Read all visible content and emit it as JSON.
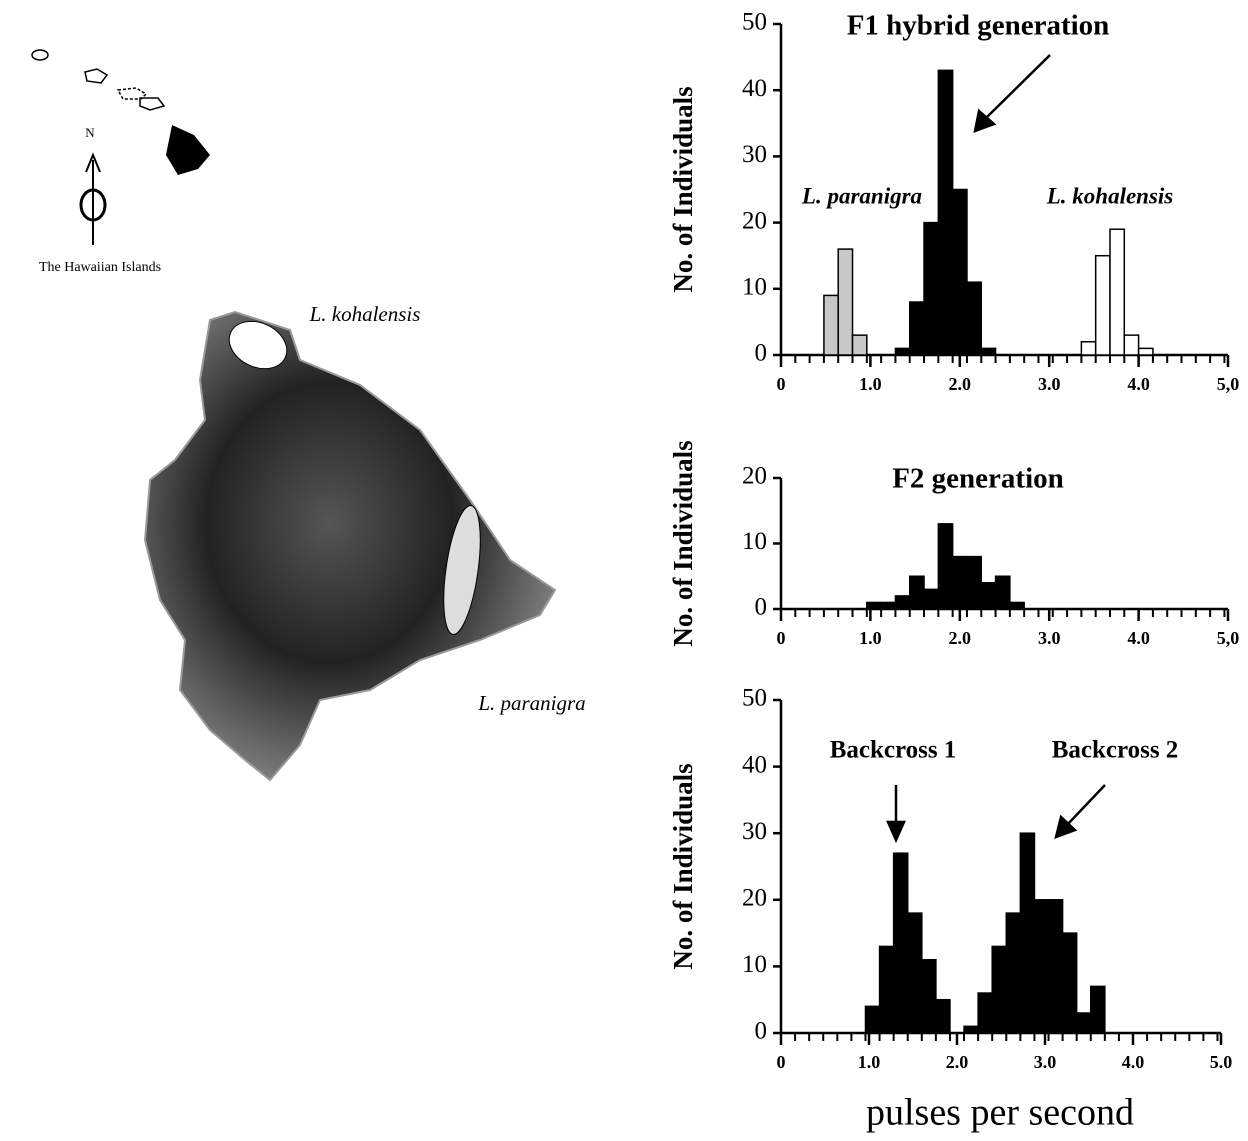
{
  "map": {
    "caption": "The Hawaiian Islands",
    "north": "N",
    "label_north": "L. kohalensis",
    "label_south": "L. paranigra"
  },
  "chart_data": [
    {
      "type": "histogram",
      "title": "F1 hybrid generation",
      "y_label": "No. of Individuals",
      "bins": [
        0,
        0.16,
        0.32,
        0.48,
        0.64,
        0.8,
        0.96,
        1.12,
        1.28,
        1.44,
        1.6,
        1.76,
        1.92,
        2.08,
        2.24,
        2.4,
        2.56,
        2.72,
        2.88,
        3.04,
        3.2,
        3.36,
        3.52,
        3.68,
        3.84,
        4,
        4.16,
        4.32,
        4.48,
        4.64,
        4.8,
        4.96
      ],
      "series": [
        {
          "name": "L. paranigra",
          "color": "#c8c8c8",
          "values": [
            0,
            0,
            0,
            9,
            16,
            3,
            0,
            0,
            0,
            0,
            0,
            0,
            0,
            0,
            0,
            0,
            0,
            0,
            0,
            0,
            0,
            0,
            0,
            0,
            0,
            0,
            0,
            0,
            0,
            0,
            0
          ]
        },
        {
          "color": "#000000",
          "values": [
            0,
            0,
            0,
            0,
            0,
            0,
            0,
            0,
            1,
            8,
            20,
            43,
            25,
            11,
            1,
            0,
            0,
            0,
            0,
            0,
            0,
            0,
            0,
            0,
            0,
            0,
            0,
            0,
            0,
            0,
            0
          ]
        },
        {
          "name": "L. kohalensis",
          "color": "#ffffff",
          "values": [
            0,
            0,
            0,
            0,
            0,
            0,
            0,
            0,
            0,
            0,
            0,
            0,
            0,
            0,
            0,
            0,
            0,
            0,
            0,
            0,
            0,
            2,
            15,
            19,
            3,
            1,
            0,
            0,
            0,
            0,
            0
          ]
        }
      ],
      "xlim": [
        0,
        5
      ],
      "ylim": [
        0,
        50
      ],
      "xticks": [
        0,
        {
          "value": 1,
          "label": "1.0"
        },
        {
          "value": 2,
          "label": "2.0"
        },
        {
          "value": 3,
          "label": "3.0"
        },
        {
          "value": 4,
          "label": "4.0"
        },
        {
          "value": 5,
          "label": "5,0"
        }
      ],
      "yticks": [
        0,
        10,
        20,
        30,
        40,
        50
      ]
    },
    {
      "type": "histogram",
      "title": "F2 generation",
      "y_label": "No. of Individuals",
      "bins": [
        0,
        0.16,
        0.32,
        0.48,
        0.64,
        0.8,
        0.96,
        1.12,
        1.28,
        1.44,
        1.6,
        1.76,
        1.92,
        2.08,
        2.24,
        2.4,
        2.56,
        2.72,
        2.88,
        3.04,
        3.2,
        3.36,
        3.52,
        3.68,
        3.84,
        4,
        4.16,
        4.32,
        4.48,
        4.64,
        4.8,
        4.96
      ],
      "color": "#000000",
      "values": [
        0,
        0,
        0,
        0,
        0,
        0,
        1,
        1,
        2,
        5,
        3,
        13,
        8,
        8,
        4,
        5,
        1,
        0,
        0,
        0,
        0,
        0,
        0,
        0,
        0,
        0,
        0,
        0,
        0,
        0,
        0
      ],
      "xlim": [
        0,
        5
      ],
      "ylim": [
        0,
        20
      ],
      "xticks": [
        0,
        {
          "value": 1,
          "label": "1.0"
        },
        {
          "value": 2,
          "label": "2.0"
        },
        {
          "value": 3,
          "label": "3.0"
        },
        {
          "value": 4,
          "label": "4.0"
        },
        {
          "value": 5,
          "label": "5,0"
        }
      ],
      "yticks": [
        0,
        10,
        20
      ]
    },
    {
      "type": "histogram",
      "y_label": "No. of Individuals",
      "x_label": "pulses per second",
      "annotations": [
        "Backcross 1",
        "Backcross 2"
      ],
      "bins": [
        0,
        0.16,
        0.32,
        0.48,
        0.64,
        0.8,
        0.96,
        1.12,
        1.28,
        1.44,
        1.6,
        1.76,
        1.92,
        2.08,
        2.24,
        2.4,
        2.56,
        2.72,
        2.88,
        3.04,
        3.2,
        3.36,
        3.52,
        3.68,
        3.84,
        4,
        4.16,
        4.32,
        4.48,
        4.64,
        4.8,
        4.96
      ],
      "color": "#000000",
      "values": [
        0,
        0,
        0,
        0,
        0,
        0,
        4,
        13,
        27,
        18,
        11,
        5,
        0,
        1,
        6,
        13,
        18,
        30,
        20,
        20,
        15,
        3,
        7,
        0,
        0,
        0,
        0,
        0,
        0,
        0,
        0
      ],
      "xlim": [
        0,
        5
      ],
      "ylim": [
        0,
        50
      ],
      "xticks": [
        0,
        {
          "value": 1,
          "label": "1.0"
        },
        {
          "value": 2,
          "label": "2.0"
        },
        {
          "value": 3,
          "label": "3.0"
        },
        {
          "value": 4,
          "label": "4.0"
        },
        {
          "value": 5,
          "label": "5.0"
        }
      ],
      "yticks": [
        0,
        10,
        20,
        30,
        40,
        50
      ]
    }
  ]
}
